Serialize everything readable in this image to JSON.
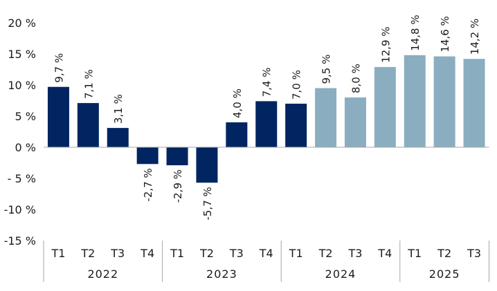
{
  "chart_data": {
    "type": "bar",
    "title": "",
    "xlabel": "",
    "ylabel": "",
    "ylim": [
      -15,
      20
    ],
    "yticks": [
      20,
      15,
      10,
      5,
      0,
      -5,
      -10,
      -15
    ],
    "ytick_labels": [
      "20 %",
      "15 %",
      "10 %",
      "5 %",
      "0 %",
      "- 5 %",
      "-10 %",
      "-15 %"
    ],
    "grid": false,
    "legend": "none",
    "categories": [
      "T1",
      "T2",
      "T3",
      "T4",
      "T1",
      "T2",
      "T3",
      "T4",
      "T1",
      "T2",
      "T3",
      "T4",
      "T1",
      "T2",
      "T3"
    ],
    "groups": [
      {
        "label": "2022",
        "count": 4
      },
      {
        "label": "2023",
        "count": 4
      },
      {
        "label": "2024",
        "count": 4
      },
      {
        "label": "2025",
        "count": 3
      }
    ],
    "values": [
      9.7,
      7.1,
      3.1,
      -2.7,
      -2.9,
      -5.7,
      4.0,
      7.4,
      7.0,
      9.5,
      8.0,
      12.9,
      14.8,
      14.6,
      14.2
    ],
    "data_labels": [
      "9,7 %",
      "7,1 %",
      "3,1 %",
      "-2,7 %",
      "-2,9 %",
      "-5,7 %",
      "4,0 %",
      "7,4 %",
      "7,0 %",
      "9,5 %",
      "8,0 %",
      "12,9 %",
      "14,8 %",
      "14,6 %",
      "14,2 %"
    ],
    "bar_styles": [
      "actual",
      "actual",
      "actual",
      "actual",
      "actual",
      "actual",
      "actual",
      "actual",
      "actual",
      "forecast",
      "forecast",
      "forecast",
      "forecast",
      "forecast",
      "forecast"
    ],
    "colors": {
      "actual": "#002561",
      "forecast": "#8aaec0",
      "axis": "#a6a6a6"
    }
  }
}
